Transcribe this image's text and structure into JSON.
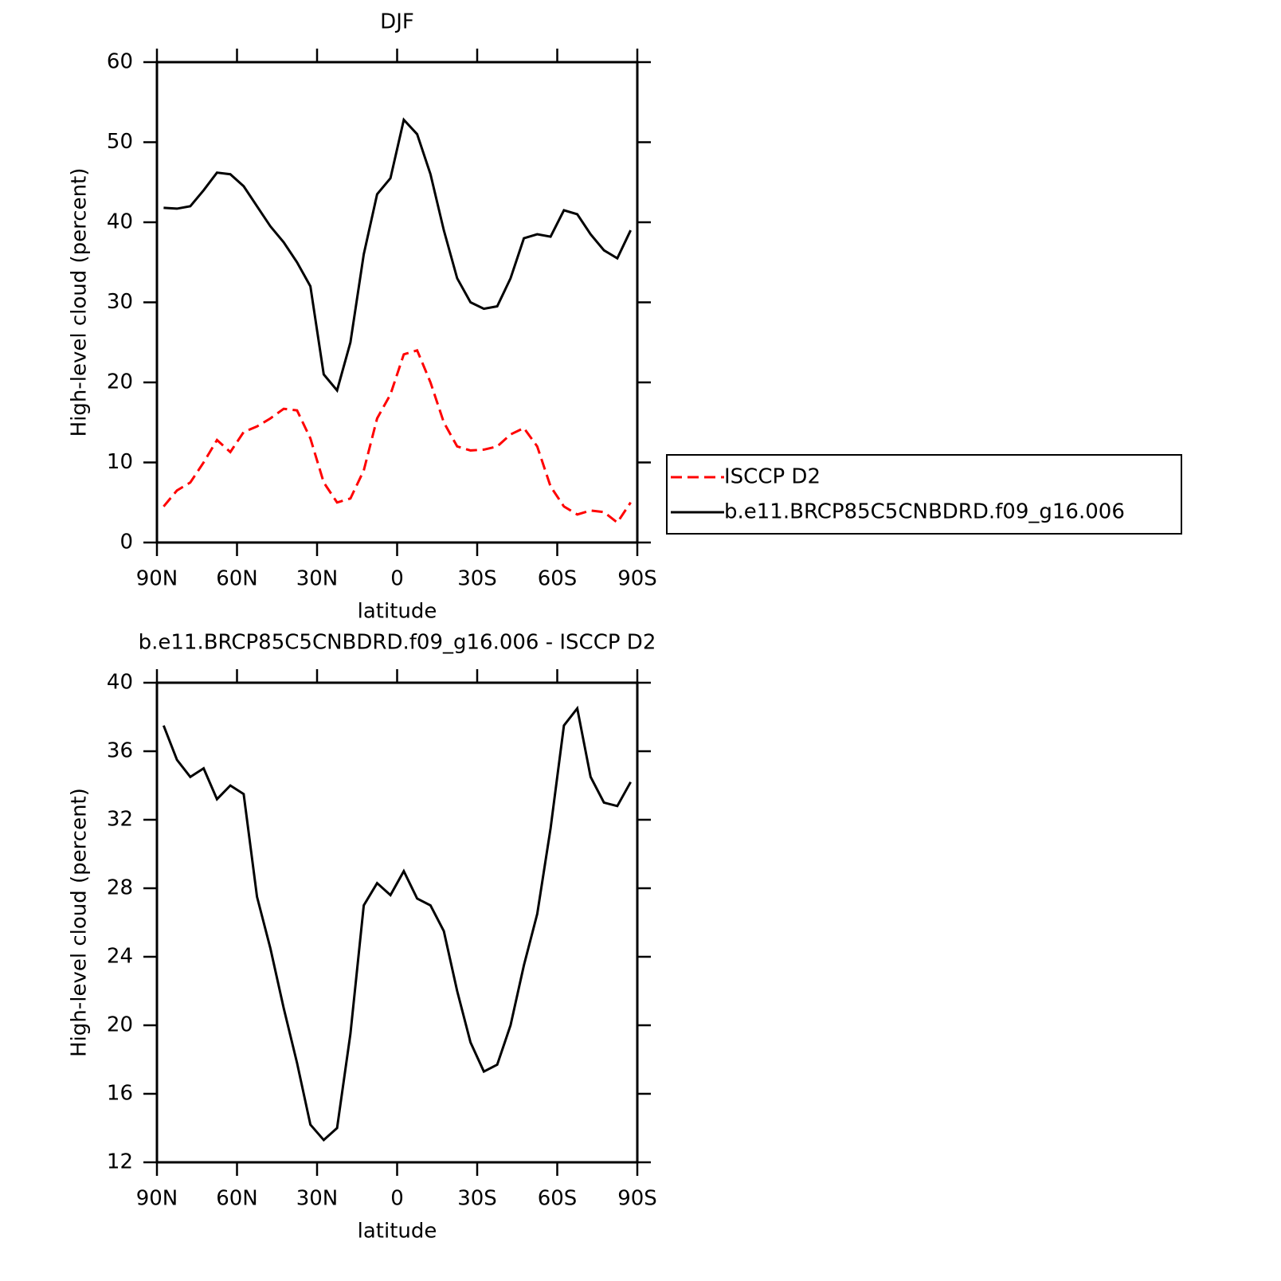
{
  "chart_data": [
    {
      "type": "line",
      "title": "DJF",
      "xlabel": "latitude",
      "ylabel": "High-level cloud (percent)",
      "x": [
        87.5,
        82.5,
        77.5,
        72.5,
        67.5,
        62.5,
        57.5,
        52.5,
        47.5,
        42.5,
        37.5,
        32.5,
        27.5,
        22.5,
        17.5,
        12.5,
        7.5,
        2.5,
        -2.5,
        -7.5,
        -12.5,
        -17.5,
        -22.5,
        -27.5,
        -32.5,
        -37.5,
        -42.5,
        -47.5,
        -52.5,
        -57.5,
        -62.5,
        -67.5,
        -72.5,
        -77.5,
        -82.5,
        -87.5
      ],
      "xlim": [
        90,
        -90
      ],
      "xticks": [
        {
          "value": 90,
          "label": "90N"
        },
        {
          "value": 60,
          "label": "60N"
        },
        {
          "value": 30,
          "label": "30N"
        },
        0,
        {
          "value": -30,
          "label": "30S"
        },
        {
          "value": -60,
          "label": "60S"
        },
        {
          "value": -90,
          "label": "90S"
        }
      ],
      "ylim": [
        0,
        60
      ],
      "yticks": [
        0,
        10,
        20,
        30,
        40,
        50,
        60
      ],
      "legend": "right",
      "series": [
        {
          "name": "ISCCP D2",
          "color": "#ff0000",
          "style": "dashed",
          "values": [
            4.5,
            6.5,
            7.5,
            10,
            12.8,
            11.3,
            13.8,
            14.5,
            15.5,
            16.7,
            16.5,
            13,
            7.5,
            5,
            5.5,
            9,
            15.5,
            18.5,
            23.5,
            24,
            20,
            15,
            12,
            11.5,
            11.6,
            12,
            13.5,
            14.3,
            12,
            7,
            4.5,
            3.5,
            4,
            3.8,
            2.5,
            5
          ]
        },
        {
          "name": "b.e11.BRCP85C5CNBDRD.f09_g16.006",
          "color": "#000000",
          "style": "solid",
          "values": [
            41.8,
            41.7,
            42,
            44,
            46.2,
            46,
            44.5,
            42,
            39.5,
            37.5,
            35,
            32,
            21,
            19,
            25,
            36,
            43.5,
            45.5,
            52.8,
            51,
            46,
            39,
            33,
            30,
            29.2,
            29.5,
            33,
            38,
            38.5,
            38.2,
            41.5,
            41,
            38.5,
            36.5,
            35.5,
            39
          ]
        }
      ]
    },
    {
      "type": "line",
      "title": "b.e11.BRCP85C5CNBDRD.f09_g16.006 - ISCCP D2",
      "xlabel": "latitude",
      "ylabel": "High-level cloud (percent)",
      "x": [
        87.5,
        82.5,
        77.5,
        72.5,
        67.5,
        62.5,
        57.5,
        52.5,
        47.5,
        42.5,
        37.5,
        32.5,
        27.5,
        22.5,
        17.5,
        12.5,
        7.5,
        2.5,
        -2.5,
        -7.5,
        -12.5,
        -17.5,
        -22.5,
        -27.5,
        -32.5,
        -37.5,
        -42.5,
        -47.5,
        -52.5,
        -57.5,
        -62.5,
        -67.5,
        -72.5,
        -77.5,
        -82.5,
        -87.5
      ],
      "xlim": [
        90,
        -90
      ],
      "xticks": [
        {
          "value": 90,
          "label": "90N"
        },
        {
          "value": 60,
          "label": "60N"
        },
        {
          "value": 30,
          "label": "30N"
        },
        0,
        {
          "value": -30,
          "label": "30S"
        },
        {
          "value": -60,
          "label": "60S"
        },
        {
          "value": -90,
          "label": "90S"
        }
      ],
      "ylim": [
        12,
        40
      ],
      "yticks": [
        12,
        16,
        20,
        24,
        28,
        32,
        36,
        40
      ],
      "color": "#000000",
      "values": [
        37.5,
        35.5,
        34.5,
        35,
        33.2,
        34,
        33.5,
        27.5,
        24.5,
        21,
        17.8,
        14.2,
        13.3,
        14,
        19.5,
        27,
        28.3,
        27.6,
        29,
        27.4,
        27,
        25.5,
        22,
        19,
        17.3,
        17.7,
        20,
        23.5,
        26.5,
        31.5,
        37.5,
        38.5,
        34.5,
        33,
        32.8,
        34.2
      ]
    }
  ]
}
